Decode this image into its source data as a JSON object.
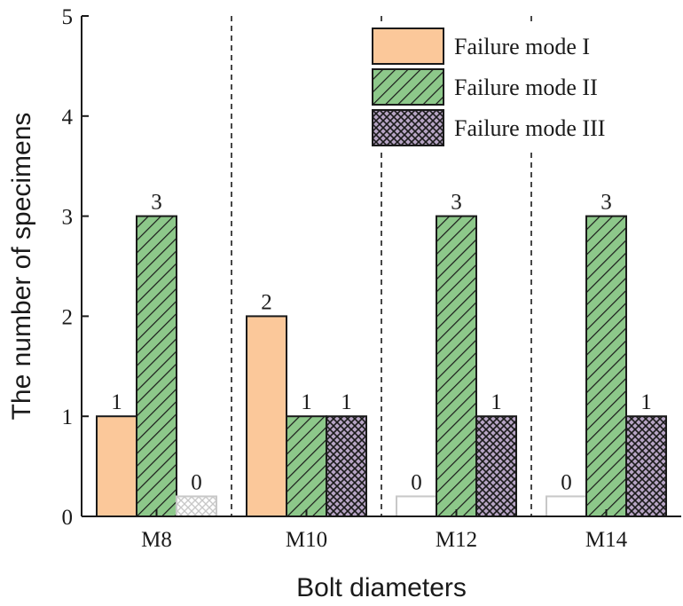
{
  "chart_data": {
    "type": "bar",
    "xlabel": "Bolt diameters",
    "ylabel": "The number of specimens",
    "categories": [
      "M8",
      "M10",
      "M12",
      "M14"
    ],
    "ylim": [
      0,
      5
    ],
    "yticks": [
      0,
      1,
      2,
      3,
      4,
      5
    ],
    "legend_position": "top-right",
    "grid": false,
    "series": [
      {
        "name": "Failure mode I",
        "values": [
          1,
          2,
          0,
          0
        ],
        "color": "#fbc89a",
        "pattern": "solid"
      },
      {
        "name": "Failure mode II",
        "values": [
          3,
          1,
          3,
          3
        ],
        "color": "#8dc88a",
        "pattern": "diagonal-hatch"
      },
      {
        "name": "Failure mode III",
        "values": [
          0,
          1,
          1,
          1
        ],
        "color": "#b6a4c4",
        "pattern": "cross-hatch"
      }
    ],
    "data_labels": [
      [
        "1",
        "3",
        "0"
      ],
      [
        "2",
        "1",
        "1"
      ],
      [
        "0",
        "3",
        "1"
      ],
      [
        "0",
        "3",
        "1"
      ]
    ],
    "zero_bar_value": 0.2
  }
}
